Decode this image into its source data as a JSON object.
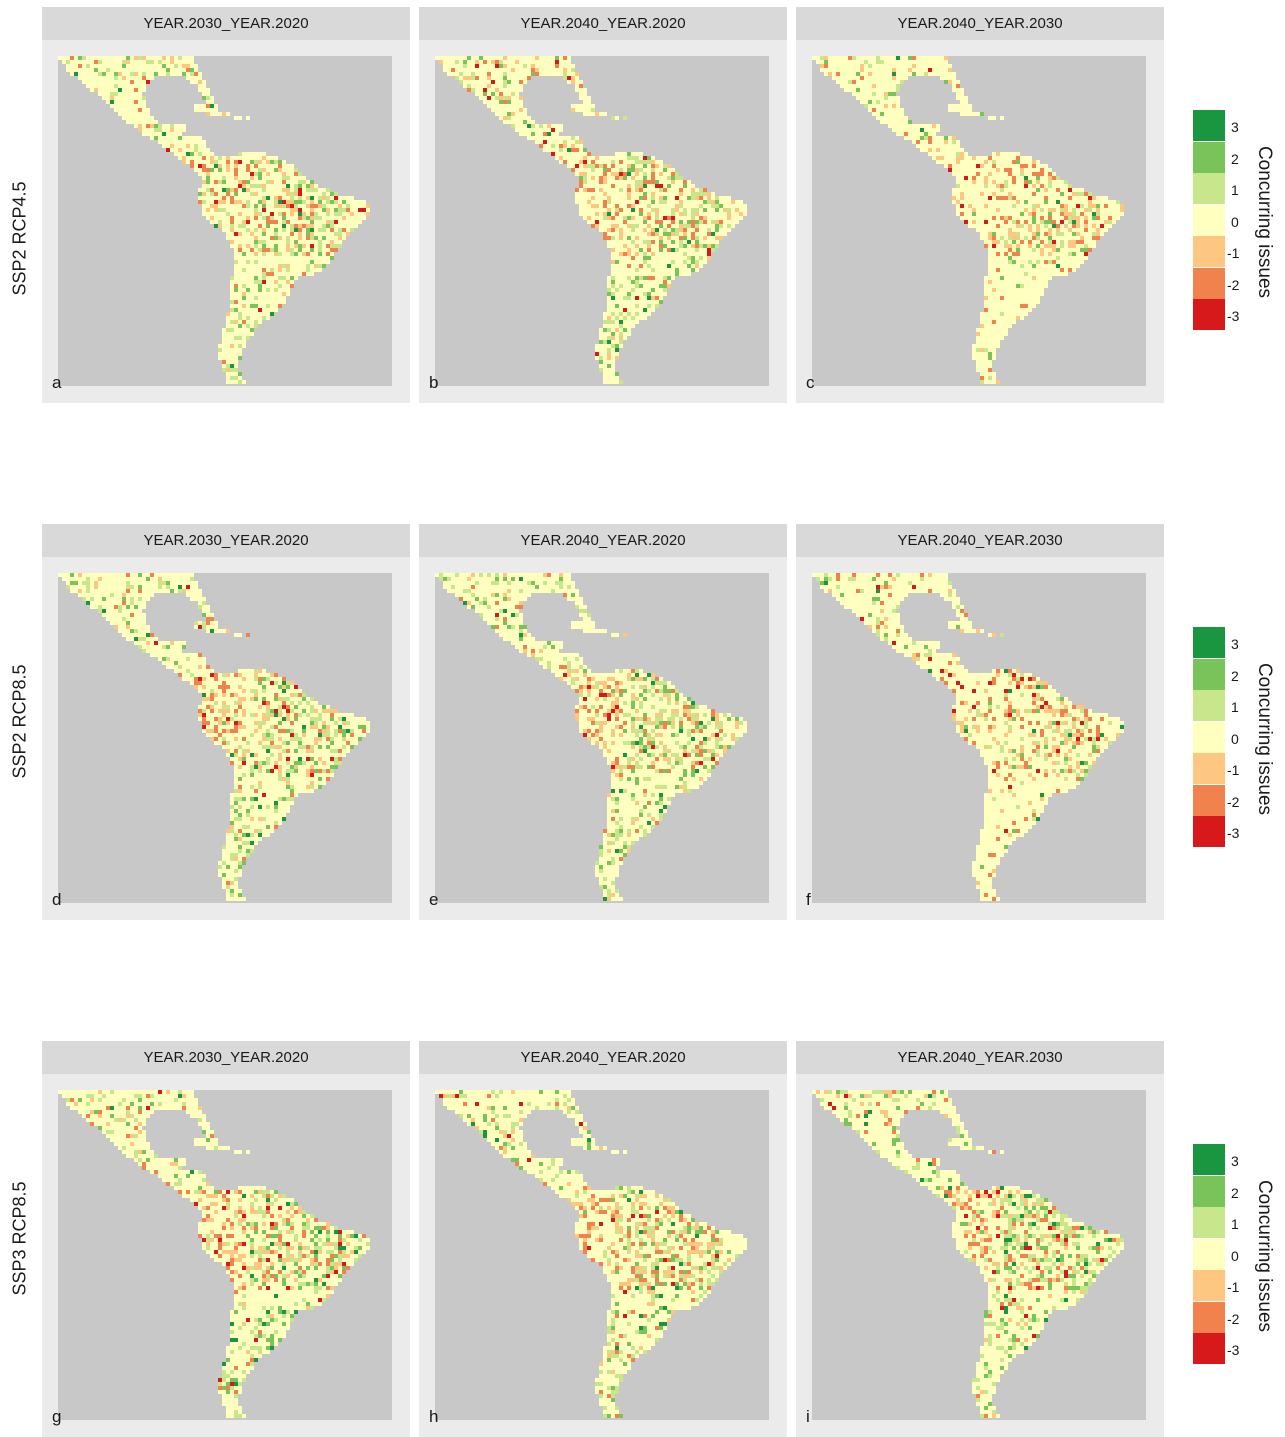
{
  "figure": {
    "legend": {
      "title": "Concurring issues",
      "levels": [
        {
          "value": "3",
          "color": "#1a9641"
        },
        {
          "value": "2",
          "color": "#78c35a"
        },
        {
          "value": "1",
          "color": "#c8e68c"
        },
        {
          "value": "0",
          "color": "#ffffbf"
        },
        {
          "value": "-1",
          "color": "#fdc781"
        },
        {
          "value": "-2",
          "color": "#f1814d"
        },
        {
          "value": "-3",
          "color": "#d7191c"
        }
      ]
    },
    "colors": {
      "background": "#ebebeb",
      "strip": "#d9d9d9",
      "ocean": "#c8c8c8"
    },
    "rows": [
      {
        "label": "SSP2 RCP4.5",
        "panels": [
          {
            "title": "YEAR.2030_YEAR.2020",
            "letter": "a"
          },
          {
            "title": "YEAR.2040_YEAR.2020",
            "letter": "b"
          },
          {
            "title": "YEAR.2040_YEAR.2030",
            "letter": "c"
          }
        ]
      },
      {
        "label": "SSP2 RCP8.5",
        "panels": [
          {
            "title": "YEAR.2030_YEAR.2020",
            "letter": "d"
          },
          {
            "title": "YEAR.2040_YEAR.2020",
            "letter": "e"
          },
          {
            "title": "YEAR.2040_YEAR.2030",
            "letter": "f"
          }
        ]
      },
      {
        "label": "SSP3 RCP8.5",
        "panels": [
          {
            "title": "YEAR.2030_YEAR.2020",
            "letter": "g"
          },
          {
            "title": "YEAR.2040_YEAR.2020",
            "letter": "h"
          },
          {
            "title": "YEAR.2040_YEAR.2030",
            "letter": "i"
          }
        ]
      }
    ]
  }
}
